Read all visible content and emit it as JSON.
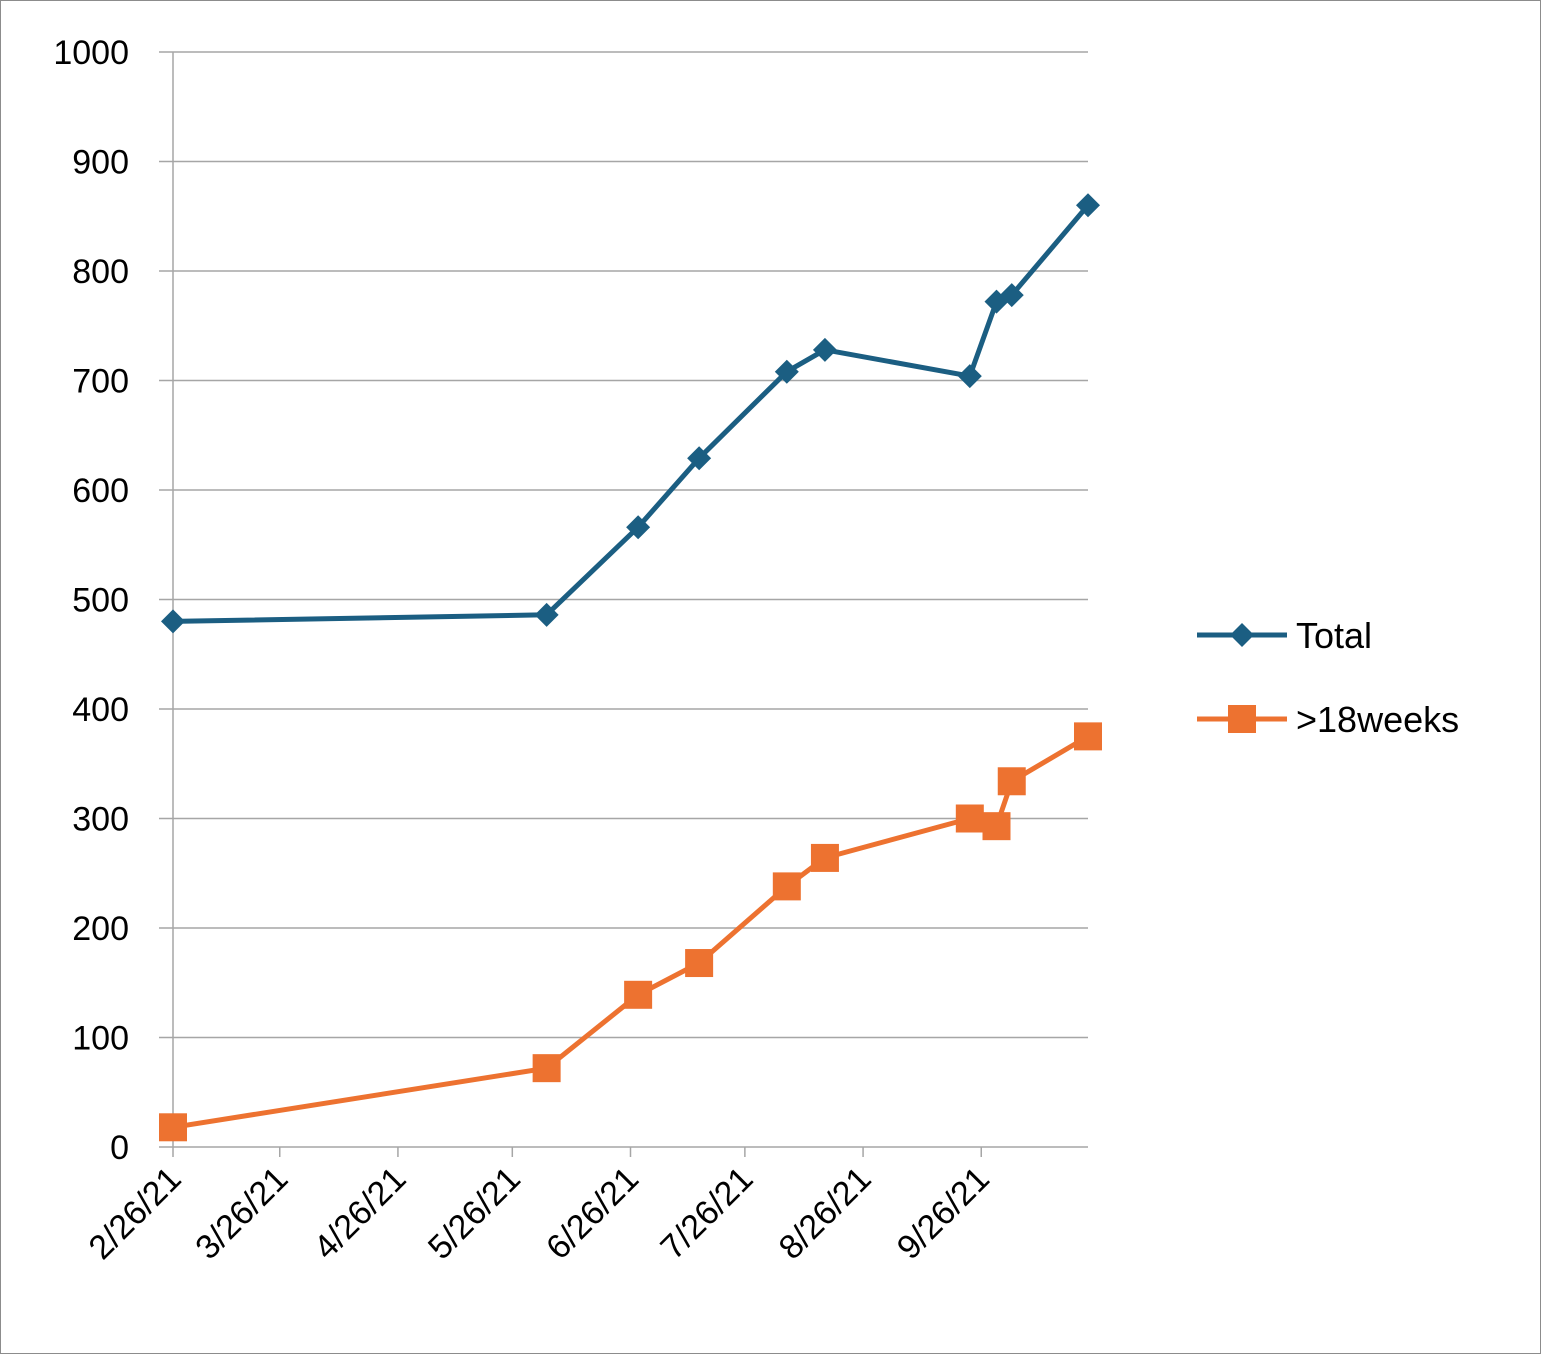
{
  "chart_data": {
    "type": "line",
    "title": "",
    "xlabel": "",
    "ylabel": "",
    "ylim": [
      0,
      1000
    ],
    "yticks": [
      "0",
      "100",
      "200",
      "300",
      "400",
      "500",
      "600",
      "700",
      "800",
      "900",
      "1000"
    ],
    "xlim": [
      "2021-02-26",
      "2021-10-24"
    ],
    "xticks": [
      {
        "date": "2021-02-26",
        "label": "2/26/21"
      },
      {
        "date": "2021-03-26",
        "label": "3/26/21"
      },
      {
        "date": "2021-04-26",
        "label": "4/26/21"
      },
      {
        "date": "2021-05-26",
        "label": "5/26/21"
      },
      {
        "date": "2021-06-26",
        "label": "6/26/21"
      },
      {
        "date": "2021-07-26",
        "label": "7/26/21"
      },
      {
        "date": "2021-08-26",
        "label": "8/26/21"
      },
      {
        "date": "2021-09-26",
        "label": "9/26/21"
      }
    ],
    "grid": true,
    "legend_position": "right",
    "series": [
      {
        "name": "Total",
        "color": "#1b5e82",
        "marker": "diamond",
        "points": [
          {
            "x": "2021-02-26",
            "y": 480
          },
          {
            "x": "2021-06-04",
            "y": 486
          },
          {
            "x": "2021-06-28",
            "y": 566
          },
          {
            "x": "2021-07-14",
            "y": 629
          },
          {
            "x": "2021-08-06",
            "y": 708
          },
          {
            "x": "2021-08-16",
            "y": 728
          },
          {
            "x": "2021-09-23",
            "y": 704
          },
          {
            "x": "2021-09-30",
            "y": 772
          },
          {
            "x": "2021-10-04",
            "y": 778
          },
          {
            "x": "2021-10-24",
            "y": 860
          }
        ]
      },
      {
        "name": ">18weeks",
        "color": "#ed7230",
        "marker": "square",
        "points": [
          {
            "x": "2021-02-26",
            "y": 18
          },
          {
            "x": "2021-06-04",
            "y": 72
          },
          {
            "x": "2021-06-28",
            "y": 139
          },
          {
            "x": "2021-07-14",
            "y": 168
          },
          {
            "x": "2021-08-06",
            "y": 238
          },
          {
            "x": "2021-08-16",
            "y": 264
          },
          {
            "x": "2021-09-23",
            "y": 300
          },
          {
            "x": "2021-09-30",
            "y": 293
          },
          {
            "x": "2021-10-04",
            "y": 334
          },
          {
            "x": "2021-10-24",
            "y": 375
          }
        ]
      }
    ]
  }
}
